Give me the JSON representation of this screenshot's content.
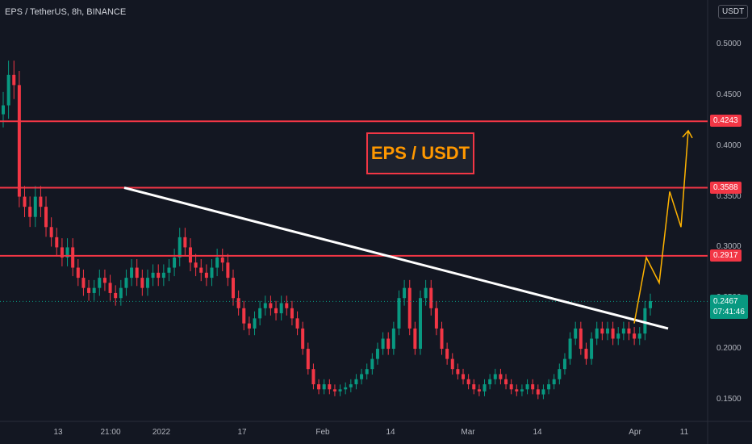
{
  "header": {
    "symbol": "EPS / TetherUS, 8h, BINANCE",
    "currency": "USDT"
  },
  "annotation": {
    "title": "EPS / USDT"
  },
  "chart_data": {
    "type": "candlestick",
    "ylim": [
      0.13,
      0.52
    ],
    "y_ticks": [
      "0.5000",
      "0.4500",
      "0.4000",
      "0.3500",
      "0.3000",
      "0.2500",
      "0.2000",
      "0.1500"
    ],
    "x_ticks": [
      "13",
      "21:00",
      "2022",
      "17",
      "Feb",
      "14",
      "Mar",
      "14",
      "Apr",
      "11"
    ],
    "horizontal_levels": [
      {
        "value": 0.4243,
        "label": "0.4243"
      },
      {
        "value": 0.3588,
        "label": "0.3588"
      },
      {
        "value": 0.2917,
        "label": "0.2917"
      }
    ],
    "last_price": {
      "value": 0.2467,
      "label": "0.2467",
      "countdown": "07:41:46"
    },
    "close_series": [
      0.44,
      0.47,
      0.46,
      0.35,
      0.34,
      0.33,
      0.35,
      0.34,
      0.32,
      0.31,
      0.3,
      0.29,
      0.3,
      0.28,
      0.27,
      0.26,
      0.255,
      0.26,
      0.27,
      0.265,
      0.255,
      0.25,
      0.26,
      0.27,
      0.28,
      0.27,
      0.26,
      0.27,
      0.275,
      0.27,
      0.275,
      0.28,
      0.29,
      0.31,
      0.3,
      0.285,
      0.28,
      0.275,
      0.27,
      0.28,
      0.29,
      0.285,
      0.27,
      0.25,
      0.24,
      0.225,
      0.22,
      0.23,
      0.24,
      0.245,
      0.24,
      0.235,
      0.245,
      0.24,
      0.23,
      0.22,
      0.2,
      0.18,
      0.165,
      0.16,
      0.165,
      0.16,
      0.158,
      0.16,
      0.162,
      0.165,
      0.17,
      0.175,
      0.18,
      0.19,
      0.2,
      0.21,
      0.2,
      0.22,
      0.25,
      0.26,
      0.22,
      0.2,
      0.25,
      0.26,
      0.24,
      0.22,
      0.2,
      0.19,
      0.18,
      0.175,
      0.17,
      0.165,
      0.16,
      0.158,
      0.165,
      0.17,
      0.175,
      0.17,
      0.165,
      0.16,
      0.158,
      0.16,
      0.165,
      0.16,
      0.155,
      0.16,
      0.165,
      0.17,
      0.18,
      0.19,
      0.21,
      0.22,
      0.2,
      0.19,
      0.21,
      0.22,
      0.215,
      0.22,
      0.21,
      0.215,
      0.22,
      0.215,
      0.21,
      0.215,
      0.24,
      0.247
    ],
    "trend_lines": [
      {
        "name": "resistance",
        "x": [
          "2021-12-28",
          "2022-04-08"
        ],
        "y": [
          0.3588,
          0.22
        ],
        "color": "#ffffff"
      }
    ],
    "projection": {
      "color": "#ffb300",
      "y": [
        0.225,
        0.29,
        0.265,
        0.355,
        0.32,
        0.415
      ]
    },
    "colors": {
      "up": "#089981",
      "down": "#f23645",
      "level": "#f23645"
    }
  }
}
